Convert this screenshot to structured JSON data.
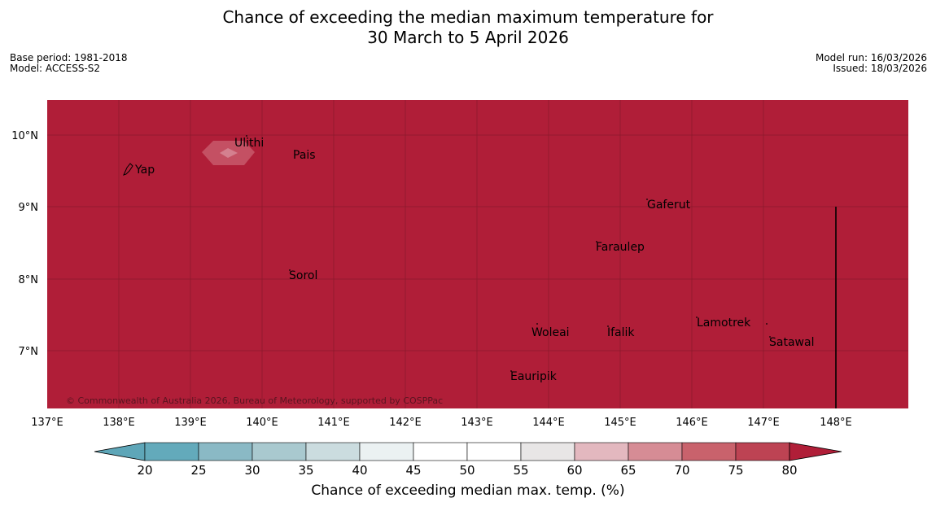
{
  "title": {
    "line1": "Chance of exceeding the median maximum temperature for",
    "line2": "30 March to 5 April 2026"
  },
  "meta_left": {
    "base_period": "Base period: 1981-2018",
    "model": "Model: ACCESS-S2"
  },
  "meta_right": {
    "model_run": "Model run: 16/03/2026",
    "issued": "Issued: 18/03/2026"
  },
  "map": {
    "fill_color": "#b01e38",
    "anomaly_color": "#c45063",
    "anomaly_inner_color": "#d4808f",
    "copyright": "© Commonwealth of Australia 2026, Bureau of Meteorology, supported by COSPPac",
    "lat_labels": [
      "10°N",
      "9°N",
      "8°N",
      "7°N"
    ],
    "lon_labels": [
      "137°E",
      "138°E",
      "139°E",
      "140°E",
      "141°E",
      "142°E",
      "143°E",
      "144°E",
      "145°E",
      "146°E",
      "147°E",
      "148°E"
    ],
    "places": [
      "Ulithi",
      "Pais",
      "Yap",
      "Gaferut",
      "Faraulep",
      "Sorol",
      "Lamotrek",
      "Woleai",
      "Ifalik",
      "Satawal",
      "Eauripik"
    ]
  },
  "colorbar": {
    "label": "Chance of exceeding median max. temp. (%)",
    "ticks": [
      "20",
      "25",
      "30",
      "35",
      "40",
      "45",
      "50",
      "55",
      "60",
      "65",
      "70",
      "75",
      "80"
    ],
    "colors": [
      "#5ea6b8",
      "#63aabb",
      "#8ab9c5",
      "#a9c9cf",
      "#cbdcdf",
      "#ebf1f2",
      "#ffffff",
      "#ffffff",
      "#e8e6e6",
      "#e3b8bf",
      "#d68c95",
      "#c9626c",
      "#bd4353",
      "#b01e38"
    ]
  }
}
